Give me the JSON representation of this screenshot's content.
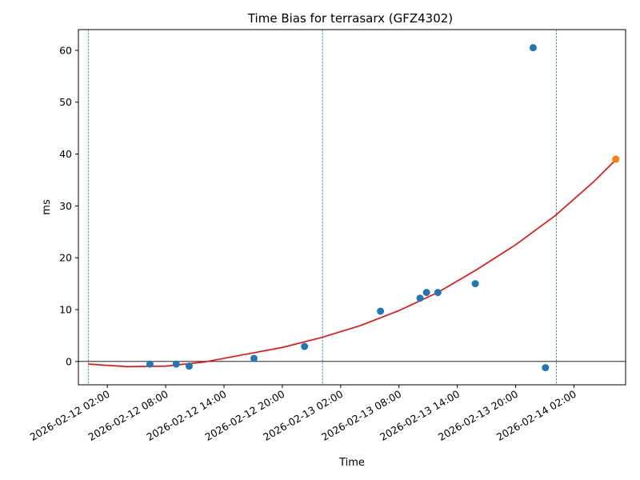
{
  "chart_data": {
    "type": "scatter",
    "title": "Time Bias for terrasarx (GFZ4302)",
    "xlabel": "Time",
    "ylabel": "ms",
    "x_axis_type": "datetime",
    "xlim": [
      "2026-02-12 00:02",
      "2026-02-14 06:18"
    ],
    "ylim": [
      -4.5,
      64
    ],
    "x_ticks": [
      {
        "value": "2026-02-12 02:00",
        "label": "2026-02-12 02:00"
      },
      {
        "value": "2026-02-12 08:00",
        "label": "2026-02-12 08:00"
      },
      {
        "value": "2026-02-12 14:00",
        "label": "2026-02-12 14:00"
      },
      {
        "value": "2026-02-12 20:00",
        "label": "2026-02-12 20:00"
      },
      {
        "value": "2026-02-13 02:00",
        "label": "2026-02-13 02:00"
      },
      {
        "value": "2026-02-13 08:00",
        "label": "2026-02-13 08:00"
      },
      {
        "value": "2026-02-13 14:00",
        "label": "2026-02-13 14:00"
      },
      {
        "value": "2026-02-13 20:00",
        "label": "2026-02-13 20:00"
      },
      {
        "value": "2026-02-14 02:00",
        "label": "2026-02-14 02:00"
      }
    ],
    "y_ticks": [
      0,
      10,
      20,
      30,
      40,
      50,
      60
    ],
    "grid": false,
    "series": [
      {
        "type": "scatter",
        "color": "#1f77b4",
        "points": [
          {
            "x": "2026-02-12 06:23",
            "y": -0.5
          },
          {
            "x": "2026-02-12 09:05",
            "y": -0.5
          },
          {
            "x": "2026-02-12 10:25",
            "y": -0.9
          },
          {
            "x": "2026-02-12 17:05",
            "y": 0.6
          },
          {
            "x": "2026-02-12 22:17",
            "y": 2.9
          },
          {
            "x": "2026-02-13 06:06",
            "y": 9.7
          },
          {
            "x": "2026-02-13 10:10",
            "y": 12.2
          },
          {
            "x": "2026-02-13 10:50",
            "y": 13.3
          },
          {
            "x": "2026-02-13 12:00",
            "y": 13.3
          },
          {
            "x": "2026-02-13 15:51",
            "y": 15.0
          },
          {
            "x": "2026-02-13 21:48",
            "y": 60.5
          },
          {
            "x": "2026-02-13 23:04",
            "y": -1.2
          }
        ]
      },
      {
        "type": "scatter",
        "color": "#ff7f0e",
        "points": [
          {
            "x": "2026-02-14 06:18",
            "y": 39.0
          }
        ]
      },
      {
        "type": "line",
        "color": "#ff0000",
        "points": [
          {
            "x": "2026-02-12 00:02",
            "y": -0.5
          },
          {
            "x": "2026-02-12 03:17",
            "y": -0.9
          },
          {
            "x": "2026-02-12 04:00",
            "y": -1.0
          },
          {
            "x": "2026-02-12 08:00",
            "y": -0.9
          },
          {
            "x": "2026-02-12 12:00",
            "y": -0.1
          },
          {
            "x": "2026-02-12 16:00",
            "y": 1.3
          },
          {
            "x": "2026-02-12 20:00",
            "y": 2.7
          },
          {
            "x": "2026-02-13 00:00",
            "y": 4.6
          },
          {
            "x": "2026-02-13 04:00",
            "y": 6.9
          },
          {
            "x": "2026-02-13 08:00",
            "y": 9.8
          },
          {
            "x": "2026-02-13 12:00",
            "y": 13.3
          },
          {
            "x": "2026-02-13 16:00",
            "y": 17.7
          },
          {
            "x": "2026-02-13 20:00",
            "y": 22.5
          },
          {
            "x": "2026-02-14 00:00",
            "y": 28.0
          },
          {
            "x": "2026-02-14 04:00",
            "y": 34.6
          },
          {
            "x": "2026-02-14 06:18",
            "y": 38.9
          }
        ]
      }
    ],
    "vertical_lines": [
      {
        "x": "2026-02-12 00:02",
        "color": "#1f77b4",
        "style": "dashed"
      },
      {
        "x": "2026-02-13 00:08",
        "color": "#1f77b4",
        "style": "dashed"
      },
      {
        "x": "2026-02-14 00:12",
        "color": "#1f77b4",
        "style": "dashed"
      }
    ],
    "horizontal_lines": [
      {
        "y": 0,
        "color": "#000000",
        "style": "solid"
      }
    ]
  }
}
